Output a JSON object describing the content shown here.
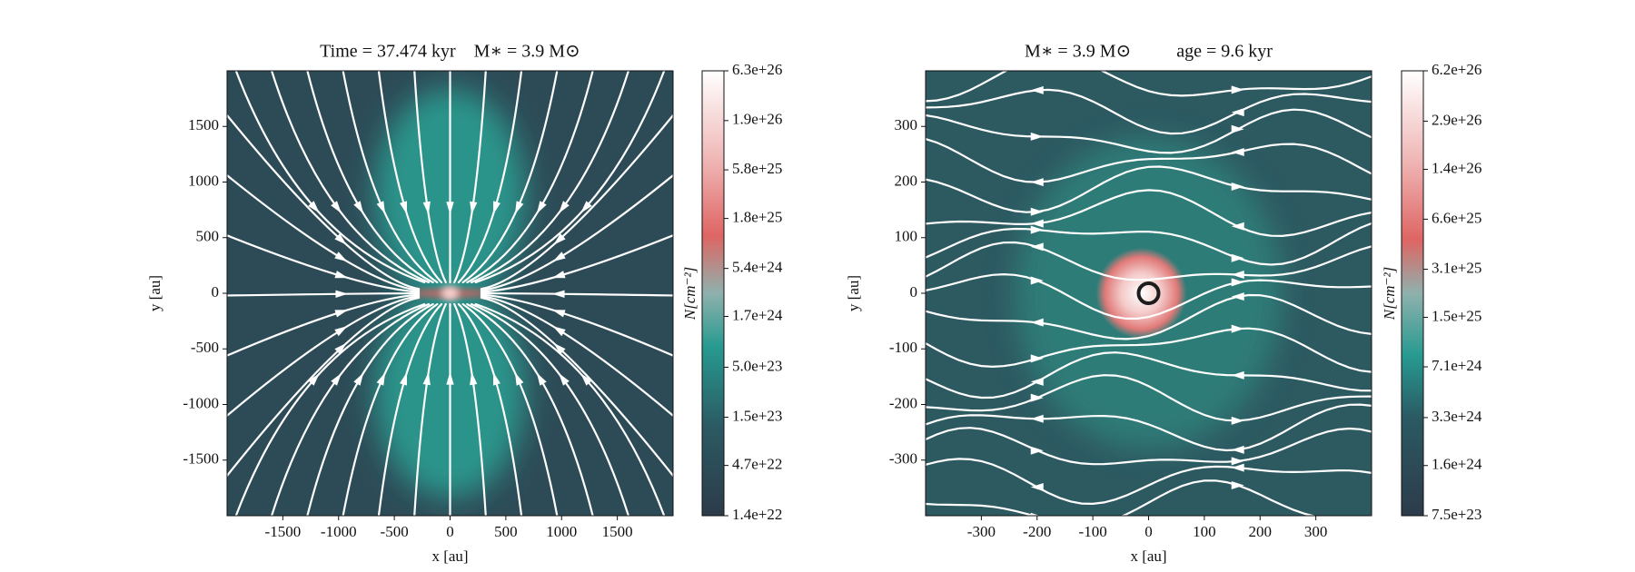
{
  "chart_data": [
    {
      "type": "heatmap",
      "title": "Time = 37.474 kyr    M∗ = 3.9 M⊙",
      "xlabel": "x [au]",
      "ylabel": "y [au]",
      "xlim": [
        -2000,
        2000
      ],
      "ylim": [
        -2000,
        2000
      ],
      "xticks": [
        -1500,
        -1000,
        -500,
        0,
        500,
        1000,
        1500
      ],
      "yticks": [
        -1500,
        -1000,
        -500,
        0,
        500,
        1000,
        1500
      ],
      "colorbar": {
        "label": "N[cm⁻²]",
        "log": true,
        "clim": [
          1.4e+22,
          6.3e+26
        ],
        "ticks": [
          {
            "value": 6.3e+26,
            "label": "6.3e+26"
          },
          {
            "value": 1.9e+26,
            "label": "1.9e+26"
          },
          {
            "value": 5.8e+25,
            "label": "5.8e+25"
          },
          {
            "value": 1.8e+25,
            "label": "1.8e+25"
          },
          {
            "value": 5.4e+24,
            "label": "5.4e+24"
          },
          {
            "value": 1.7e+24,
            "label": "1.7e+24"
          },
          {
            "value": 5e+23,
            "label": "5.0e+23"
          },
          {
            "value": 1.5e+23,
            "label": "1.5e+23"
          },
          {
            "value": 4.7e+22,
            "label": "4.7e+22"
          },
          {
            "value": 1.4e+22,
            "label": "1.4e+22"
          }
        ]
      }
    },
    {
      "type": "heatmap",
      "title": "M∗ = 3.9 M⊙          age = 9.6 kyr",
      "xlabel": "x [au]",
      "ylabel": "y [au]",
      "xlim": [
        -400,
        400
      ],
      "ylim": [
        -400,
        400
      ],
      "xticks": [
        -300,
        -200,
        -100,
        0,
        100,
        200,
        300
      ],
      "yticks": [
        -300,
        -200,
        -100,
        0,
        100,
        200,
        300
      ],
      "colorbar": {
        "label": "N[cm⁻²]",
        "log": true,
        "clim": [
          7.5e+23,
          6.2e+26
        ],
        "ticks": [
          {
            "value": 6.2e+26,
            "label": "6.2e+26"
          },
          {
            "value": 2.9e+26,
            "label": "2.9e+26"
          },
          {
            "value": 1.4e+26,
            "label": "1.4e+26"
          },
          {
            "value": 6.6e+25,
            "label": "6.6e+25"
          },
          {
            "value": 3.1e+25,
            "label": "3.1e+25"
          },
          {
            "value": 1.5e+25,
            "label": "1.5e+25"
          },
          {
            "value": 7.1e+24,
            "label": "7.1e+24"
          },
          {
            "value": 3.3e+24,
            "label": "3.3e+24"
          },
          {
            "value": 1.6e+24,
            "label": "1.6e+24"
          },
          {
            "value": 7.5e+23,
            "label": "7.5e+23"
          }
        ]
      }
    }
  ]
}
